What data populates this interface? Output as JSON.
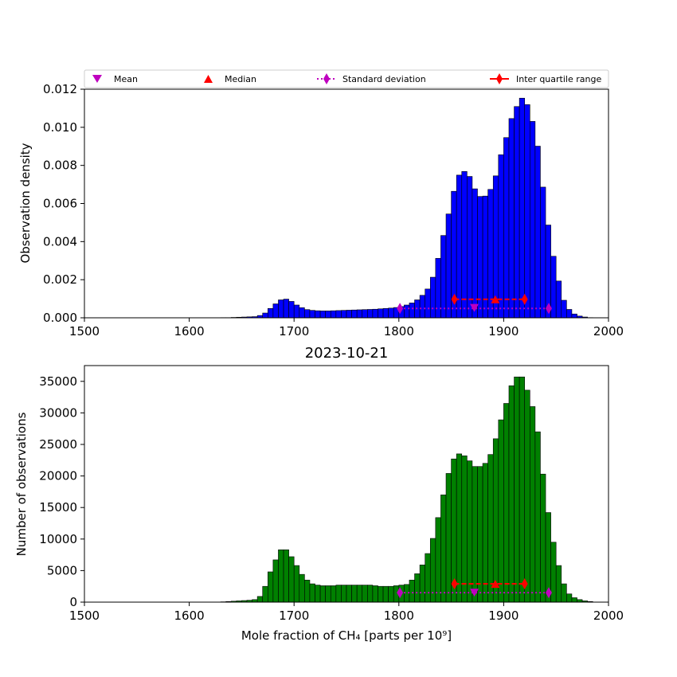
{
  "chart_data": [
    {
      "type": "bar",
      "panel": "top",
      "title": "",
      "xlabel": "",
      "ylabel": "Observation density",
      "xlim": [
        1500,
        2000
      ],
      "ylim": [
        0,
        0.012
      ],
      "xticks": [
        "1500",
        "1600",
        "1700",
        "1800",
        "1900",
        "2000"
      ],
      "yticks": [
        "0.000",
        "0.002",
        "0.004",
        "0.006",
        "0.008",
        "0.010",
        "0.012"
      ],
      "bar_color": "#0000ff",
      "bin_start": 1630,
      "bin_width": 5,
      "values": [
        1e-05,
        1e-05,
        2e-05,
        3e-05,
        4e-05,
        5e-05,
        6e-05,
        0.00012,
        0.00025,
        0.00049,
        0.00073,
        0.00094,
        0.00098,
        0.00086,
        0.00067,
        0.00053,
        0.00043,
        0.00039,
        0.00037,
        0.00036,
        0.00036,
        0.00037,
        0.00038,
        0.00039,
        0.0004,
        0.00041,
        0.00042,
        0.00043,
        0.00044,
        0.00045,
        0.00047,
        0.00049,
        0.00051,
        0.00054,
        0.00059,
        0.00067,
        0.00078,
        0.00094,
        0.00118,
        0.00151,
        0.00213,
        0.00312,
        0.00432,
        0.00545,
        0.00664,
        0.00749,
        0.00768,
        0.00742,
        0.00677,
        0.00637,
        0.00639,
        0.00674,
        0.00745,
        0.00856,
        0.00946,
        0.01046,
        0.01109,
        0.01153,
        0.01119,
        0.01031,
        0.00901,
        0.00686,
        0.00487,
        0.00323,
        0.00193,
        0.00092,
        0.00044,
        0.0002,
        9e-05,
        4e-05,
        1e-05
      ],
      "markers_y": {
        "mean": 0.00052,
        "median": 0.00097,
        "std": 0.00049,
        "iqr": 0.00097
      },
      "legend": {
        "placement": "top",
        "entries": [
          "Mean",
          "Median",
          "Standard deviation",
          "Inter quartile range"
        ]
      }
    },
    {
      "type": "bar",
      "panel": "bottom",
      "title": "2023-10-21",
      "xlabel": "Mole fraction of CH₄ [parts per 10⁹]",
      "ylabel": "Number of observations",
      "xlim": [
        1500,
        2000
      ],
      "ylim": [
        0,
        37500
      ],
      "xticks": [
        "1500",
        "1600",
        "1700",
        "1800",
        "1900",
        "2000"
      ],
      "yticks": [
        "0",
        "5000",
        "10000",
        "15000",
        "20000",
        "25000",
        "30000",
        "35000"
      ],
      "bar_color": "#008000",
      "bin_start": 1630,
      "bin_width": 5,
      "values": [
        50,
        100,
        150,
        200,
        250,
        300,
        400,
        900,
        2500,
        4800,
        6700,
        8300,
        8300,
        7200,
        5800,
        4400,
        3500,
        2900,
        2700,
        2600,
        2600,
        2600,
        2700,
        2700,
        2700,
        2700,
        2700,
        2700,
        2700,
        2600,
        2500,
        2500,
        2500,
        2600,
        2700,
        2800,
        3500,
        4500,
        5900,
        7700,
        10100,
        13400,
        17000,
        20400,
        22700,
        23500,
        23200,
        22400,
        21500,
        21500,
        22000,
        23400,
        25900,
        28900,
        31500,
        34300,
        35700,
        35700,
        33600,
        31000,
        27000,
        20300,
        14200,
        9500,
        5800,
        2900,
        1300,
        700,
        400,
        200,
        100
      ],
      "markers_y": {
        "mean": 1500,
        "median": 2900,
        "std": 1500,
        "iqr": 2900
      }
    }
  ],
  "stats": {
    "mean": 1872,
    "median": 1892,
    "std_low": 1801,
    "std_high": 1943,
    "iqr_low": 1853,
    "iqr_high": 1920
  },
  "colors": {
    "mean": "#bf00bf",
    "median": "#ff0000",
    "std": "#bf00bf",
    "iqr": "#ff0000"
  }
}
